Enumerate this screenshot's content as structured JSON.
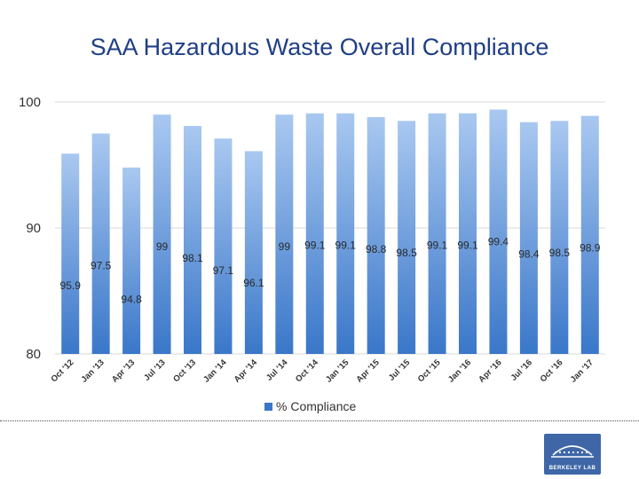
{
  "slide": {
    "title": "SAA Hazardous Waste Overall Compliance"
  },
  "logo": {
    "text": "BERKELEY LAB"
  },
  "colors": {
    "title": "#1f3f86",
    "bar_top": "#a9c8f0",
    "bar_bottom": "#3a77c9",
    "grid": "#d9d9d9",
    "text": "#333333"
  },
  "chart_data": {
    "type": "bar",
    "title": "",
    "xlabel": "",
    "ylabel": "",
    "ylim": [
      80,
      100
    ],
    "yticks": [
      80,
      90,
      100
    ],
    "grid": true,
    "legend": "bottom-center",
    "categories": [
      "Oct '12",
      "Jan '13",
      "Apr '13",
      "Jul '13",
      "Oct '13",
      "Jan '14",
      "Apr '14",
      "Jul '14",
      "Oct '14",
      "Jan '15",
      "Apr '15",
      "Jul '15",
      "Oct '15",
      "Jan '16",
      "Apr '16",
      "Jul '16",
      "Oct '16",
      "Jan '17"
    ],
    "series": [
      {
        "name": "% Compliance",
        "values": [
          95.9,
          97.5,
          94.8,
          99,
          98.1,
          97.1,
          96.1,
          99,
          99.1,
          99.1,
          98.8,
          98.5,
          99.1,
          99.1,
          99.4,
          98.4,
          98.5,
          98.9
        ]
      }
    ]
  }
}
